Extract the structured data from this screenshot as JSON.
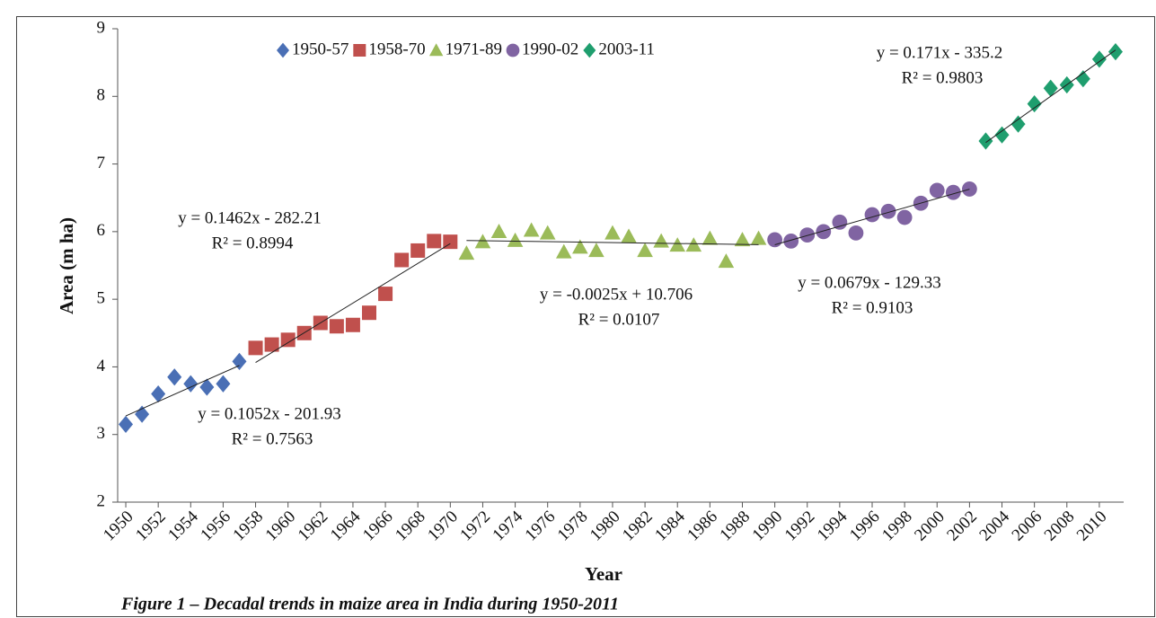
{
  "chart_data": {
    "type": "scatter",
    "caption": "Figure 1 – Decadal trends in maize area in India during 1950-2011",
    "x_label": "Year",
    "y_label": "Area (m ha)",
    "xlim": [
      1949.5,
      2011.5
    ],
    "xticks": [
      1950,
      1952,
      1954,
      1956,
      1958,
      1960,
      1962,
      1964,
      1966,
      1968,
      1970,
      1972,
      1974,
      1976,
      1978,
      1980,
      1982,
      1984,
      1986,
      1988,
      1990,
      1992,
      1994,
      1996,
      1998,
      2000,
      2002,
      2004,
      2006,
      2008,
      2010
    ],
    "ylim": [
      2,
      9
    ],
    "yticks": [
      2,
      3,
      4,
      5,
      6,
      7,
      8,
      9
    ],
    "grid": false,
    "legend": "top",
    "trendlines": true,
    "series": [
      {
        "name": "1950-57",
        "color": "#4a6fb5",
        "marker": "diamond",
        "x": [
          1950,
          1951,
          1952,
          1953,
          1954,
          1955,
          1956,
          1957
        ],
        "values": [
          3.15,
          3.3,
          3.6,
          3.85,
          3.75,
          3.7,
          3.75,
          4.08
        ]
      },
      {
        "name": "1958-70",
        "color": "#c0504d",
        "marker": "square",
        "x": [
          1958,
          1959,
          1960,
          1961,
          1962,
          1963,
          1964,
          1965,
          1966,
          1967,
          1968,
          1969,
          1970
        ],
        "values": [
          4.28,
          4.33,
          4.4,
          4.5,
          4.65,
          4.6,
          4.62,
          4.8,
          5.08,
          5.58,
          5.72,
          5.86,
          5.85
        ]
      },
      {
        "name": "1971-89",
        "color": "#9bbb59",
        "marker": "triangle",
        "x": [
          1971,
          1972,
          1973,
          1974,
          1975,
          1976,
          1977,
          1978,
          1979,
          1980,
          1981,
          1982,
          1983,
          1984,
          1985,
          1986,
          1987,
          1988,
          1989
        ],
        "values": [
          5.68,
          5.85,
          6.0,
          5.87,
          6.02,
          5.98,
          5.7,
          5.77,
          5.72,
          5.98,
          5.93,
          5.72,
          5.86,
          5.8,
          5.8,
          5.9,
          5.56,
          5.88,
          5.9
        ]
      },
      {
        "name": "1990-02",
        "color": "#8064a2",
        "marker": "circle",
        "x": [
          1990,
          1991,
          1992,
          1993,
          1994,
          1995,
          1996,
          1997,
          1998,
          1999,
          2000,
          2001,
          2002
        ],
        "values": [
          5.88,
          5.86,
          5.95,
          6.0,
          6.14,
          5.98,
          6.25,
          6.3,
          6.21,
          6.42,
          6.61,
          6.58,
          6.63
        ]
      },
      {
        "name": "2003-11",
        "color": "#1f9e6e",
        "marker": "diamond",
        "x": [
          2003,
          2004,
          2005,
          2006,
          2007,
          2008,
          2009,
          2010,
          2011
        ],
        "values": [
          7.34,
          7.43,
          7.59,
          7.89,
          8.12,
          8.17,
          8.26,
          8.55,
          8.66
        ]
      }
    ],
    "annotations": [
      {
        "lines": [
          "y = 0.1052x - 201.93",
          "R² = 0.7563"
        ]
      },
      {
        "lines": [
          "y = 0.1462x - 282.21",
          "R² = 0.8994"
        ]
      },
      {
        "lines": [
          "y = -0.0025x + 10.706",
          "R² = 0.0107"
        ]
      },
      {
        "lines": [
          "y = 0.0679x - 129.33",
          "R² = 0.9103"
        ]
      },
      {
        "lines": [
          "y = 0.171x - 335.2",
          "R² = 0.9803"
        ]
      }
    ]
  }
}
